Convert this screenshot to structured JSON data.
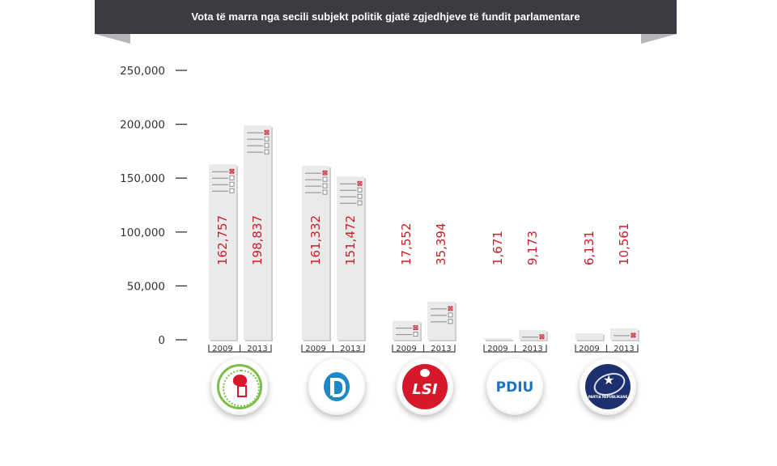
{
  "banner": {
    "title": "Vota të marra nga secili subjekt politik gjatë zgjedhjeve të fundit parlamentare"
  },
  "chart_data": {
    "type": "bar",
    "title": "Vota të marra nga secili subjekt politik gjatë zgjedhjeve të fundit parlamentare",
    "categories": [
      "PS",
      "PD",
      "LSI",
      "PDIU",
      "PR"
    ],
    "x": [
      "2009",
      "2013"
    ],
    "series": [
      {
        "name": "",
        "values": [
          162757,
          161332,
          17552,
          1671,
          6131
        ]
      },
      {
        "name": "",
        "values": [
          198837,
          151472,
          35394,
          9173,
          10561
        ]
      }
    ],
    "value_labels": [
      [
        "162,757",
        "198,837"
      ],
      [
        "161,332",
        "151,472"
      ],
      [
        "17,552",
        "35,394"
      ],
      [
        "1,671",
        "9,173"
      ],
      [
        "6,131",
        "10,561"
      ]
    ],
    "yticks": [
      "250,000",
      "200,000",
      "150,000",
      "100,000",
      "50,000",
      "0"
    ],
    "ytick_values": [
      250000,
      200000,
      150000,
      100000,
      50000,
      0
    ],
    "ylim": [
      0,
      250000
    ],
    "xlabel": "",
    "ylabel": "",
    "grid": false,
    "legend": "none"
  },
  "logos": [
    {
      "party": "PS",
      "name": "ps-logo",
      "text": ""
    },
    {
      "party": "PD",
      "name": "pd-logo",
      "text": ""
    },
    {
      "party": "LSI",
      "name": "lsi-logo",
      "text": "LSI"
    },
    {
      "party": "PDIU",
      "name": "pdiu-logo",
      "text": "PDIU"
    },
    {
      "party": "PR",
      "name": "pr-logo",
      "text": "PARTIA REPUBLIKANE"
    }
  ],
  "colors": {
    "banner": "#3a3c41",
    "bar": "#eaeaea",
    "bar_shadow": "#cfcfcf",
    "value_text": "#c8202b",
    "ps_green": "#7bbf4a",
    "pd_blue": "#1e88c7",
    "lsi_red": "#d7182a",
    "pdiu_blue": "#1a74c4",
    "pr_navy": "#1c2f6e"
  }
}
